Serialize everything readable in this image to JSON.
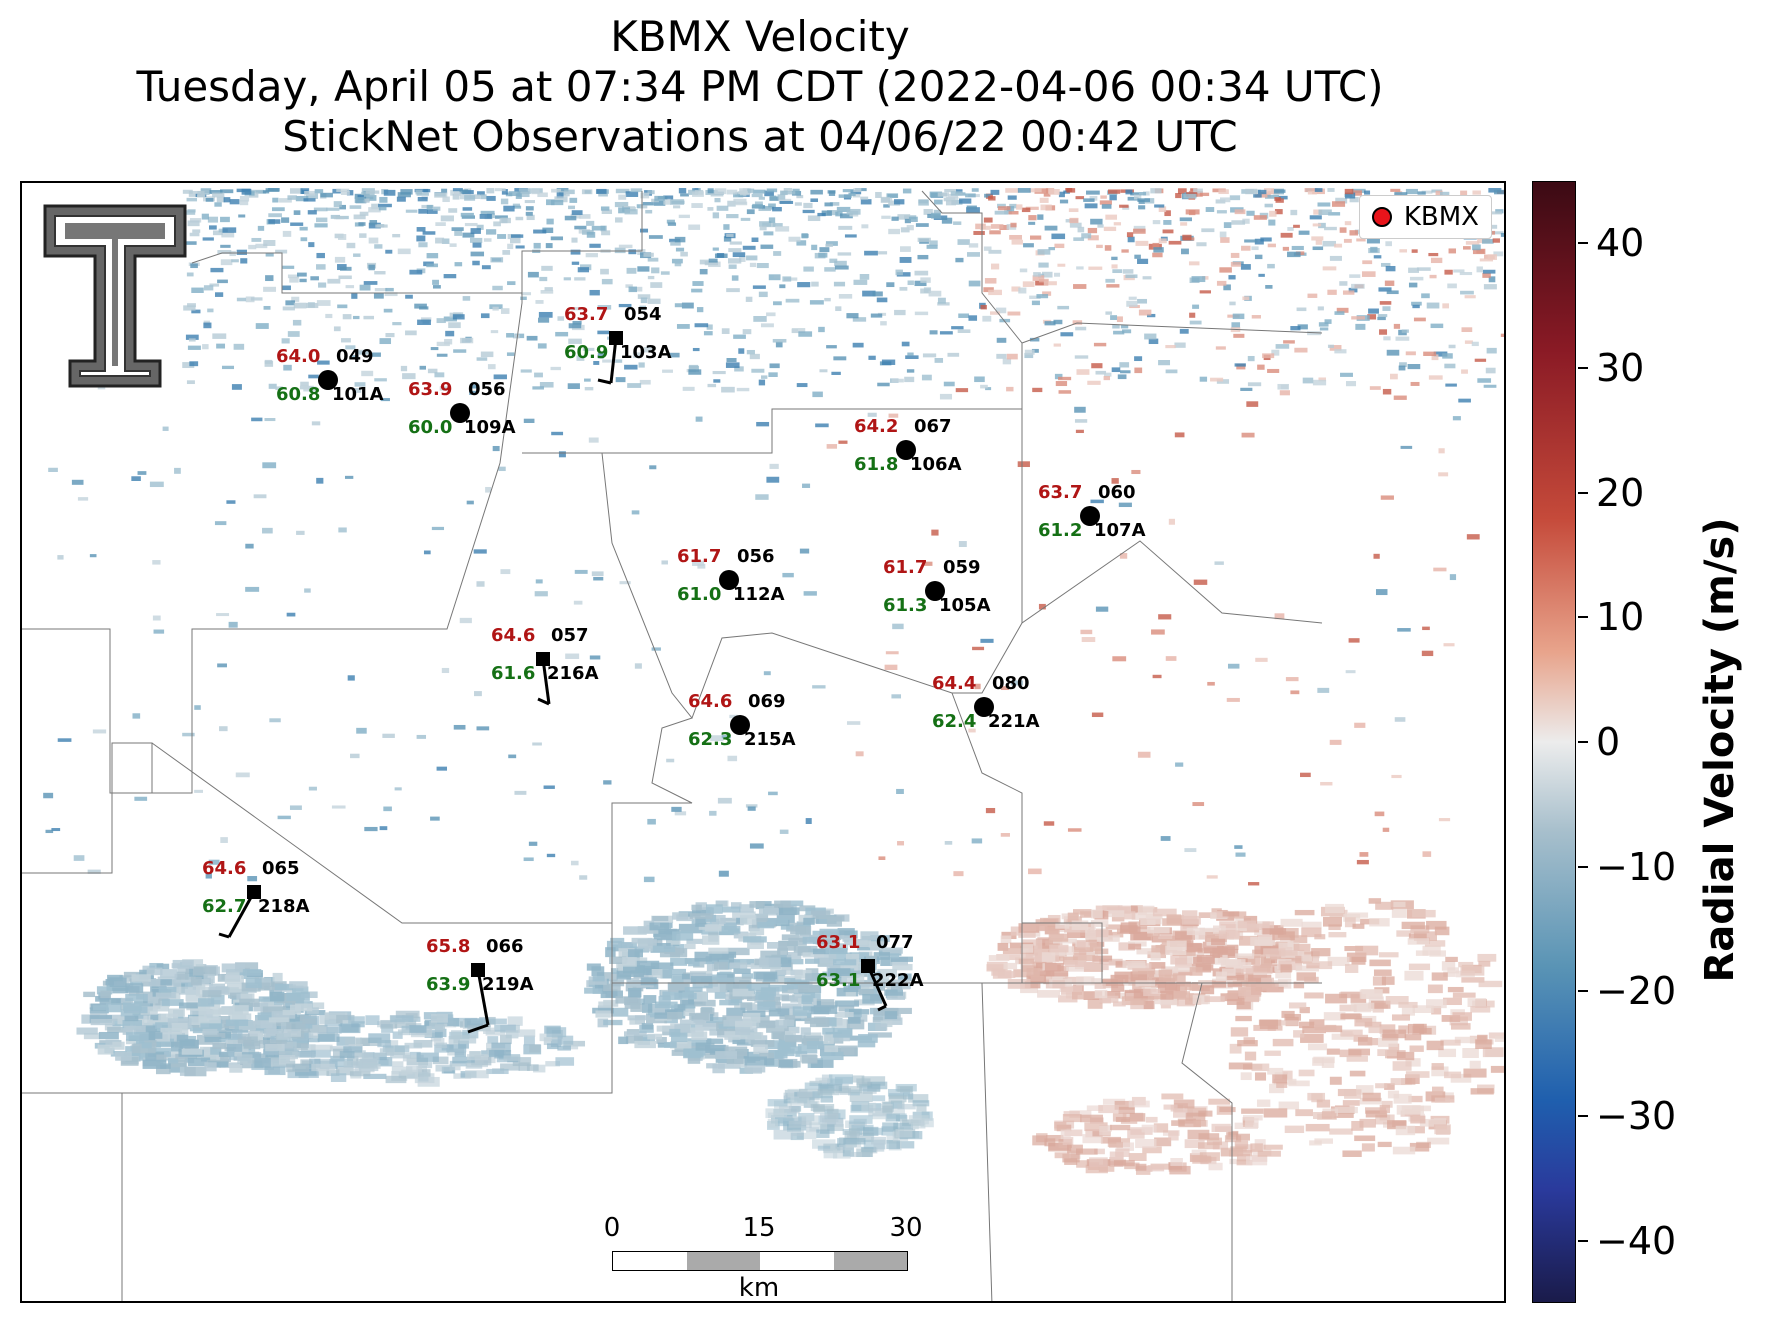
{
  "title": {
    "line1": "KBMX Velocity",
    "line2": "Tuesday, April 05 at 07:34 PM CDT (2022-04-06 00:34 UTC)",
    "line3": "StickNet Observations at 04/06/22 00:42 UTC"
  },
  "legend": {
    "label": "KBMX",
    "marker_color": "#e8141b"
  },
  "colorbar": {
    "label": "Radial Velocity (m/s)",
    "range": [
      -45,
      45
    ],
    "ticks": [
      "40",
      "30",
      "20",
      "10",
      "0",
      "−10",
      "−20",
      "−30",
      "−40"
    ],
    "colors": {
      "max": "#3b0a14",
      "positive": "#c54a3a",
      "zero": "#ececec",
      "negative": "#5a94b5",
      "min": "#1a1b4a"
    }
  },
  "scalebar": {
    "labels": [
      "0",
      "15",
      "30"
    ],
    "unit": "km"
  },
  "stations": [
    {
      "id": "101A",
      "temp": "64.0",
      "dew": "60.8",
      "wind_dir": "049",
      "marker": "circle"
    },
    {
      "id": "109A",
      "temp": "63.9",
      "dew": "60.0",
      "wind_dir": "056",
      "marker": "circle"
    },
    {
      "id": "103A",
      "temp": "63.7",
      "dew": "60.9",
      "wind_dir": "054",
      "marker": "square"
    },
    {
      "id": "106A",
      "temp": "64.2",
      "dew": "61.8",
      "wind_dir": "067",
      "marker": "circle"
    },
    {
      "id": "107A",
      "temp": "63.7",
      "dew": "61.2",
      "wind_dir": "060",
      "marker": "circle"
    },
    {
      "id": "112A",
      "temp": "61.7",
      "dew": "61.0",
      "wind_dir": "056",
      "marker": "circle"
    },
    {
      "id": "105A",
      "temp": "61.7",
      "dew": "61.3",
      "wind_dir": "059",
      "marker": "circle"
    },
    {
      "id": "216A",
      "temp": "64.6",
      "dew": "61.6",
      "wind_dir": "057",
      "marker": "square"
    },
    {
      "id": "215A",
      "temp": "64.6",
      "dew": "62.3",
      "wind_dir": "069",
      "marker": "circle"
    },
    {
      "id": "221A",
      "temp": "64.4",
      "dew": "62.4",
      "wind_dir": "080",
      "marker": "circle"
    },
    {
      "id": "218A",
      "temp": "64.6",
      "dew": "62.7",
      "wind_dir": "065",
      "marker": "square"
    },
    {
      "id": "219A",
      "temp": "65.8",
      "dew": "63.9",
      "wind_dir": "066",
      "marker": "square"
    },
    {
      "id": "222A",
      "temp": "63.1",
      "dew": "63.1",
      "wind_dir": "077",
      "marker": "square"
    }
  ]
}
